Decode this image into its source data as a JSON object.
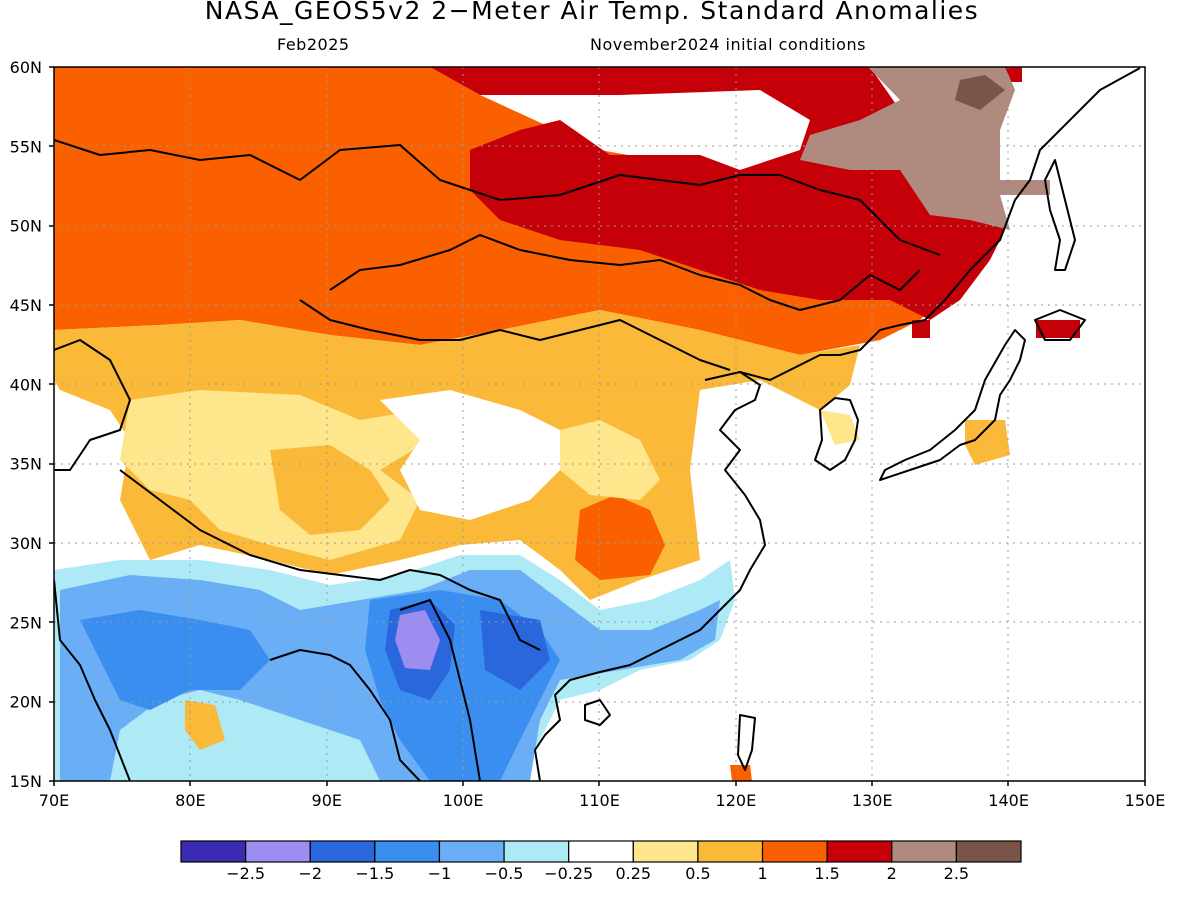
{
  "title": "NASA_GEOS5v2 2−Meter Air Temp. Standard Anomalies",
  "subtitle_left": "Feb2025",
  "subtitle_right": "November2024 initial conditions",
  "map": {
    "lon_range": [
      70,
      150
    ],
    "lat_range": [
      15,
      60
    ],
    "x_ticks": [
      "70E",
      "80E",
      "90E",
      "100E",
      "110E",
      "120E",
      "130E",
      "140E",
      "150E"
    ],
    "y_ticks": [
      "60N",
      "55N",
      "50N",
      "45N",
      "40N",
      "35N",
      "30N",
      "25N",
      "20N",
      "15N"
    ],
    "grid": "dotted"
  },
  "legend": {
    "colors": [
      "#3a2db3",
      "#9c8ef0",
      "#2a66dc",
      "#3a8ef0",
      "#6aaef5",
      "#aeeaf6",
      "#ffffff",
      "#fee68c",
      "#fbb93a",
      "#fb6000",
      "#c60008",
      "#b0897f",
      "#7a5449"
    ],
    "labels": [
      "−2.5",
      "−2",
      "−1.5",
      "−1",
      "−0.5",
      "−0.25",
      "0.25",
      "0.5",
      "1",
      "1.5",
      "2",
      "2.5"
    ]
  }
}
